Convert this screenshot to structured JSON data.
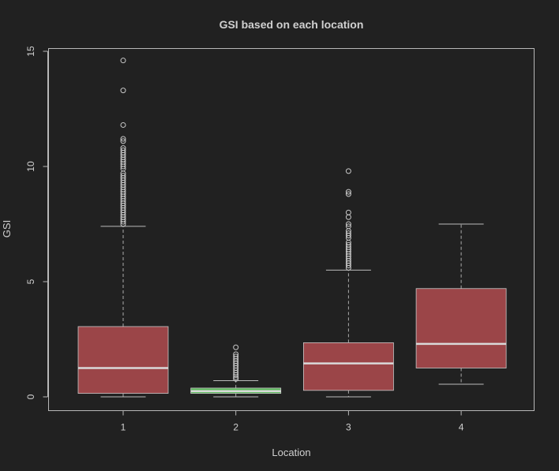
{
  "chart_data": {
    "type": "boxplot",
    "title": "GSI based on each location",
    "xlabel": "Location",
    "ylabel": "GSI",
    "categories": [
      "1",
      "2",
      "3",
      "4"
    ],
    "yticks": [
      0,
      5,
      10,
      15
    ],
    "ylim": [
      -0.6,
      15.2
    ],
    "grid": false,
    "boxes": [
      {
        "category": "1",
        "color": "#9b4548",
        "median_color": "#d9d9d9",
        "whisker_low": 0.0,
        "q1": 0.15,
        "median": 1.25,
        "q3": 3.05,
        "whisker_high": 7.4,
        "outliers": [
          14.6,
          13.3,
          11.8,
          11.2,
          11.1,
          10.8,
          10.7,
          10.6,
          10.5,
          10.4,
          10.3,
          10.2,
          10.1,
          10.0,
          9.9,
          9.7,
          9.6,
          9.5,
          9.4,
          9.3,
          9.2,
          9.1,
          9.0,
          8.9,
          8.8,
          8.7,
          8.6,
          8.5,
          8.4,
          8.3,
          8.2,
          8.1,
          8.0,
          7.9,
          7.8,
          7.7,
          7.6,
          7.5
        ]
      },
      {
        "category": "2",
        "color": "#5cb85c",
        "median_color": "#d9d9d9",
        "whisker_low": 0.0,
        "q1": 0.15,
        "median": 0.25,
        "q3": 0.38,
        "whisker_high": 0.7,
        "outliers": [
          2.15,
          1.85,
          1.75,
          1.65,
          1.55,
          1.45,
          1.35,
          1.25,
          1.15,
          1.05,
          0.95,
          0.85,
          0.78
        ]
      },
      {
        "category": "3",
        "color": "#9b4548",
        "median_color": "#d9d9d9",
        "whisker_low": 0.0,
        "q1": 0.28,
        "median": 1.45,
        "q3": 2.35,
        "whisker_high": 5.5,
        "outliers": [
          9.8,
          8.9,
          8.8,
          8.0,
          7.8,
          7.5,
          7.4,
          7.2,
          7.1,
          7.0,
          6.9,
          6.7,
          6.6,
          6.5,
          6.4,
          6.3,
          6.2,
          6.1,
          6.0,
          5.9,
          5.8,
          5.7,
          5.6
        ]
      },
      {
        "category": "4",
        "color": "#9b4548",
        "median_color": "#d9d9d9",
        "whisker_low": 0.55,
        "q1": 1.25,
        "median": 2.3,
        "q3": 4.7,
        "whisker_high": 7.5,
        "outliers": []
      }
    ]
  }
}
